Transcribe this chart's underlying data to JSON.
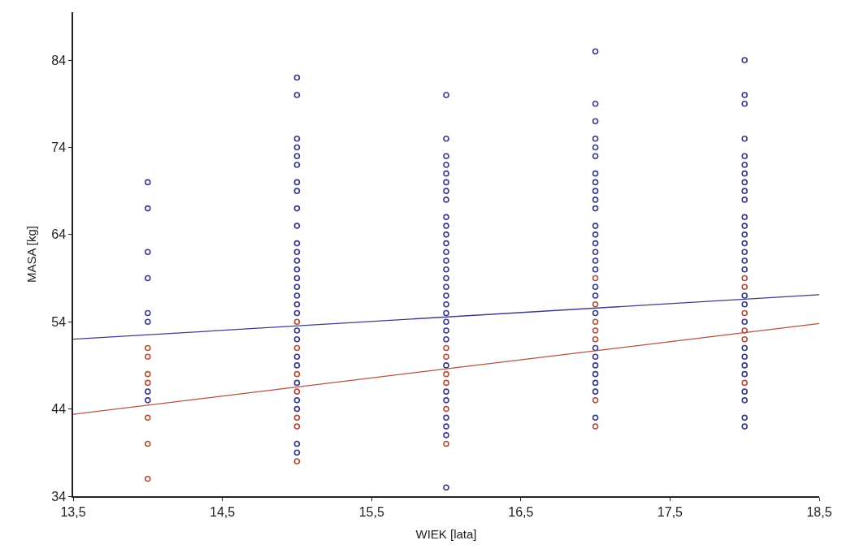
{
  "chart_data": {
    "type": "scatter",
    "xlabel": "WIEK [lata]",
    "ylabel": "MASA [kg]",
    "marker": "circle",
    "xlim": [
      13.5,
      18.5
    ],
    "ylim": [
      34,
      89.5
    ],
    "xticks": [
      {
        "value": 13.5,
        "label": "13,5"
      },
      {
        "value": 14.5,
        "label": "14,5"
      },
      {
        "value": 15.5,
        "label": "15,5"
      },
      {
        "value": 16.5,
        "label": "16,5"
      },
      {
        "value": 17.5,
        "label": "17,5"
      },
      {
        "value": 18.5,
        "label": "18,5"
      }
    ],
    "yticks": [
      34,
      44,
      54,
      64,
      74,
      84
    ],
    "series": [
      {
        "color": "#3c3c8c",
        "x": [
          14,
          14,
          14,
          14,
          14,
          14,
          14,
          14,
          15,
          15,
          15,
          15,
          15,
          15,
          15,
          15,
          15,
          15,
          15,
          15,
          15,
          15,
          15,
          15,
          15,
          15,
          15,
          15,
          15,
          15,
          15,
          15,
          15,
          15,
          15,
          15,
          16,
          16,
          16,
          16,
          16,
          16,
          16,
          16,
          16,
          16,
          16,
          16,
          16,
          16,
          16,
          16,
          16,
          16,
          16,
          16,
          16,
          16,
          16,
          16,
          16,
          16,
          16,
          16,
          16,
          16,
          17,
          17,
          17,
          17,
          17,
          17,
          17,
          17,
          17,
          17,
          17,
          17,
          17,
          17,
          17,
          17,
          17,
          17,
          17,
          17,
          17,
          17,
          17,
          17,
          17,
          17,
          17,
          18,
          18,
          18,
          18,
          18,
          18,
          18,
          18,
          18,
          18,
          18,
          18,
          18,
          18,
          18,
          18,
          18,
          18,
          18,
          18,
          18,
          18,
          18,
          18,
          18,
          18,
          18,
          18
        ],
        "values": [
          70,
          67,
          62,
          59,
          55,
          54,
          46,
          45,
          82,
          80,
          75,
          74,
          73,
          72,
          70,
          69,
          67,
          65,
          63,
          62,
          61,
          60,
          59,
          58,
          57,
          56,
          55,
          53,
          52,
          50,
          49,
          47,
          45,
          44,
          40,
          39,
          80,
          75,
          73,
          72,
          71,
          70,
          69,
          68,
          66,
          65,
          64,
          63,
          62,
          61,
          60,
          59,
          58,
          57,
          56,
          55,
          54,
          53,
          52,
          49,
          46,
          45,
          43,
          42,
          41,
          35,
          85,
          79,
          77,
          75,
          74,
          73,
          71,
          70,
          69,
          68,
          67,
          65,
          64,
          63,
          62,
          61,
          60,
          58,
          57,
          55,
          51,
          50,
          49,
          48,
          47,
          46,
          43,
          84,
          80,
          79,
          75,
          73,
          72,
          71,
          70,
          69,
          68,
          66,
          65,
          64,
          63,
          62,
          61,
          60,
          57,
          56,
          54,
          51,
          50,
          49,
          48,
          46,
          45,
          43,
          42
        ]
      },
      {
        "color": "#b5503c",
        "x": [
          14,
          14,
          14,
          14,
          14,
          14,
          14,
          15,
          15,
          15,
          15,
          15,
          15,
          15,
          16,
          16,
          16,
          16,
          16,
          16,
          17,
          17,
          17,
          17,
          17,
          17,
          17,
          18,
          18,
          18,
          18,
          18,
          18
        ],
        "values": [
          51,
          50,
          48,
          47,
          43,
          40,
          36,
          54,
          51,
          48,
          46,
          43,
          42,
          38,
          51,
          50,
          48,
          47,
          44,
          40,
          59,
          56,
          54,
          53,
          52,
          45,
          42,
          59,
          58,
          55,
          53,
          52,
          47
        ]
      },
      {
        "type": "line",
        "marker": "none",
        "color": "#3c3c8c",
        "x": [
          13.5,
          18.5
        ],
        "values": [
          52.0,
          57.1
        ]
      },
      {
        "type": "line",
        "marker": "none",
        "color": "#b5503c",
        "x": [
          13.5,
          18.5
        ],
        "values": [
          43.4,
          53.8
        ]
      }
    ]
  }
}
